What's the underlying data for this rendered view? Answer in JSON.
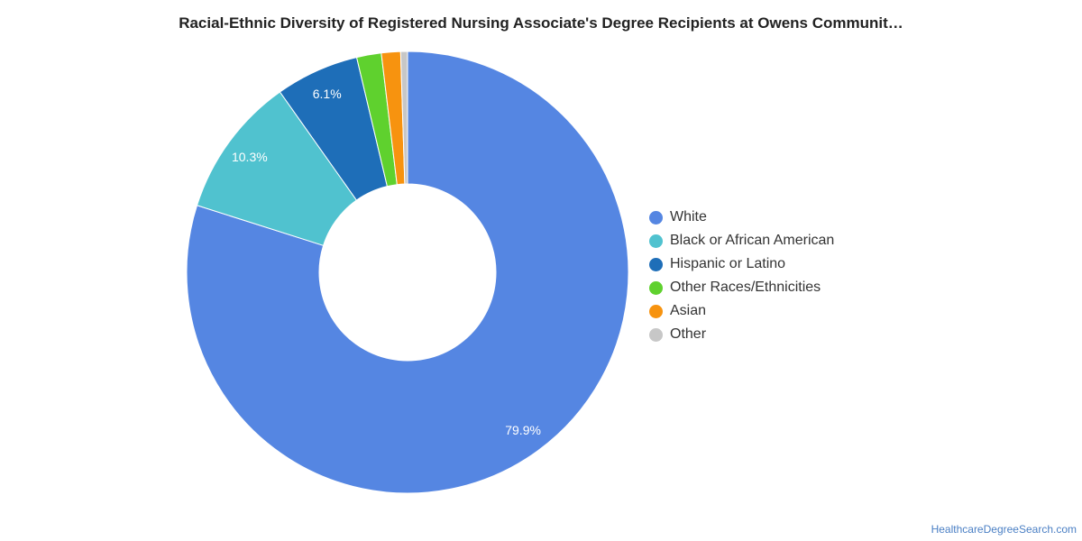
{
  "chart_data": {
    "type": "pie",
    "title": "Racial-Ethnic Diversity of Registered Nursing Associate's Degree Recipients at Owens Communit…",
    "donut": true,
    "legend_position": "right",
    "series": [
      {
        "name": "White",
        "value": 79.9,
        "label": "79.9%",
        "color": "#5586e2"
      },
      {
        "name": "Black or African American",
        "value": 10.3,
        "label": "10.3%",
        "color": "#50c2cf"
      },
      {
        "name": "Hispanic or Latino",
        "value": 6.1,
        "label": "6.1%",
        "color": "#1e6eb8"
      },
      {
        "name": "Other Races/Ethnicities",
        "value": 1.8,
        "label": "",
        "color": "#5fd12e"
      },
      {
        "name": "Asian",
        "value": 1.4,
        "label": "",
        "color": "#f7930f"
      },
      {
        "name": "Other",
        "value": 0.5,
        "label": "",
        "color": "#c7c7c7"
      }
    ]
  },
  "footer": {
    "source": "HealthcareDegreeSearch.com"
  }
}
